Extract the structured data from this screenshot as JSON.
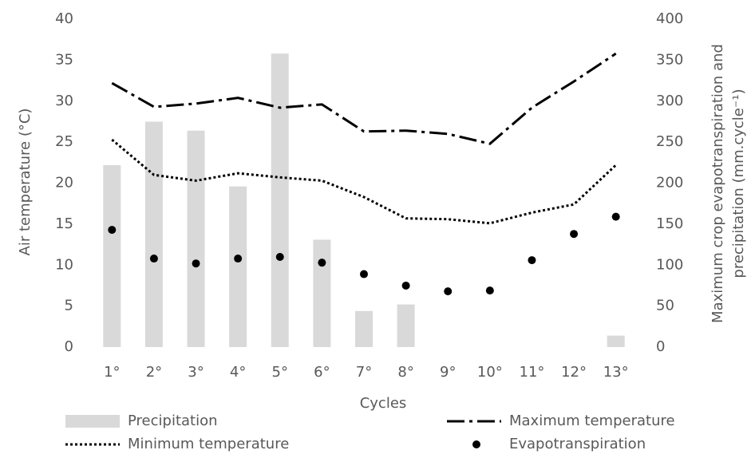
{
  "chart_data": {
    "type": "combo",
    "x_label": "Cycles",
    "y_label": "Air temperature (°C)",
    "y2_label": [
      "Maximum crop evapotranspiration and",
      "precipitation (mm.cycle⁻¹)"
    ],
    "categories": [
      "1°",
      "2°",
      "3°",
      "4°",
      "5°",
      "6°",
      "7°",
      "8°",
      "9°",
      "10°",
      "11°",
      "12°",
      "13°"
    ],
    "ylim": [
      0,
      40
    ],
    "yticks": [
      0,
      5,
      10,
      15,
      20,
      25,
      30,
      35,
      40
    ],
    "y2lim": [
      0,
      400
    ],
    "y2ticks": [
      0,
      50,
      100,
      150,
      200,
      250,
      300,
      350,
      400
    ],
    "legend": "bottom",
    "series": [
      {
        "name": "Precipitation",
        "type": "bar",
        "axis": "y2",
        "color": "#d9d9d9",
        "values": [
          222,
          275,
          264,
          196,
          358,
          131,
          44,
          52,
          0,
          0,
          0,
          0,
          14
        ]
      },
      {
        "name": "Maximum temperature",
        "type": "line",
        "dash": "dashdot",
        "color": "#000000",
        "values": [
          32.2,
          29.3,
          29.7,
          30.4,
          29.2,
          29.6,
          26.3,
          26.4,
          26.0,
          24.8,
          29.2,
          32.4,
          35.8
        ]
      },
      {
        "name": "Minimum temperature",
        "type": "line",
        "dash": "dot",
        "color": "#000000",
        "values": [
          25.3,
          21.0,
          20.3,
          21.2,
          20.7,
          20.3,
          18.3,
          15.7,
          15.6,
          15.1,
          16.4,
          17.4,
          22.2
        ]
      },
      {
        "name": "Evapotranspiration",
        "type": "scatter",
        "axis": "y2",
        "color": "#000000",
        "values": [
          143,
          108,
          102,
          108,
          110,
          103,
          89,
          75,
          68,
          69,
          106,
          138,
          159
        ]
      }
    ]
  }
}
